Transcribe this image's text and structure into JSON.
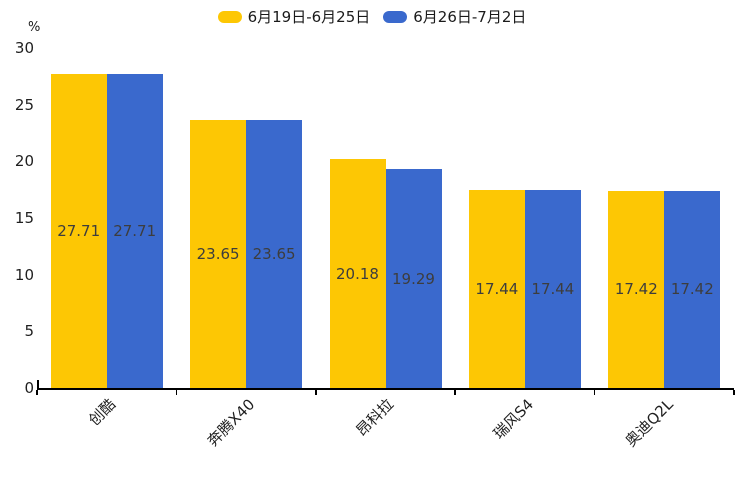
{
  "chart_data": {
    "type": "bar",
    "title": "",
    "categories": [
      "创酷",
      "奔腾X40",
      "昂科拉",
      "瑞风S4",
      "奥迪Q2L"
    ],
    "series": [
      {
        "name": "6月19日-6月25日",
        "color": "#FDC704",
        "values": [
          27.71,
          23.65,
          20.18,
          17.44,
          17.42
        ]
      },
      {
        "name": "6月26日-7月2日",
        "color": "#3A69CD",
        "values": [
          27.71,
          23.65,
          19.29,
          17.44,
          17.42
        ]
      }
    ],
    "xlabel": "",
    "ylabel": "%",
    "ylim": [
      0,
      30
    ],
    "yticks": [
      0,
      5,
      10,
      15,
      20,
      25,
      30
    ],
    "grid": false,
    "legend_position": "top-center",
    "bar_labels_shown": true,
    "bar_label_color": "#3d3d3d",
    "axis_color": "#000000",
    "background_color": "#ffffff"
  }
}
